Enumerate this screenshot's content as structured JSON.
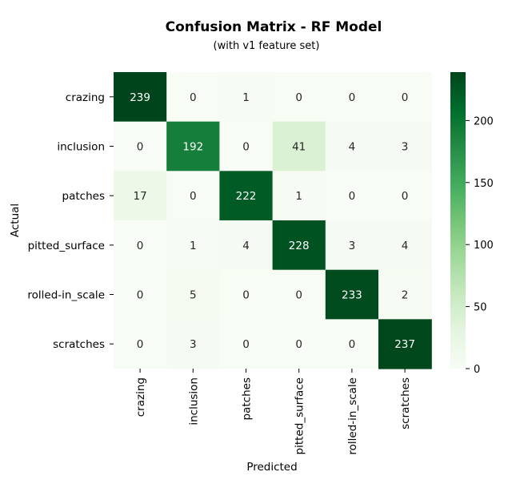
{
  "chart_data": {
    "type": "heatmap",
    "title": "Confusion Matrix - RF Model",
    "subtitle": "(with v1 feature set)",
    "xlabel": "Predicted",
    "ylabel": "Actual",
    "row_labels": [
      "crazing",
      "inclusion",
      "patches",
      "pitted_surface",
      "rolled-in_scale",
      "scratches"
    ],
    "col_labels": [
      "crazing",
      "inclusion",
      "patches",
      "pitted_surface",
      "rolled-in_scale",
      "scratches"
    ],
    "values": [
      [
        239,
        0,
        1,
        0,
        0,
        0
      ],
      [
        0,
        192,
        0,
        41,
        4,
        3
      ],
      [
        17,
        0,
        222,
        1,
        0,
        0
      ],
      [
        0,
        1,
        4,
        228,
        3,
        4
      ],
      [
        0,
        5,
        0,
        0,
        233,
        2
      ],
      [
        0,
        3,
        0,
        0,
        0,
        237
      ]
    ],
    "colormap": "Greens",
    "vmin": 0,
    "vmax": 239,
    "colorbar_ticks": [
      0,
      50,
      100,
      150,
      200
    ]
  }
}
